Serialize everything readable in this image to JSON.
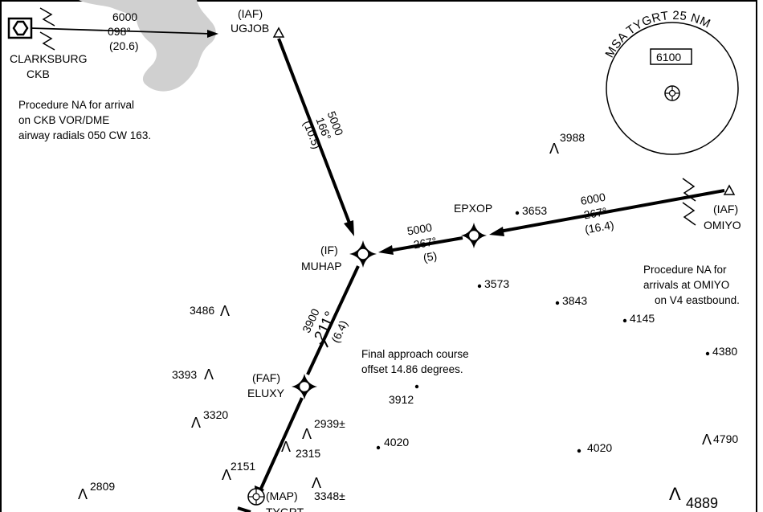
{
  "navaid": {
    "name": "CLARKSBURG",
    "ident": "CKB"
  },
  "feeder": {
    "altitude": "6000",
    "course": "098°",
    "distance": "(20.6)"
  },
  "notes": {
    "ckb": [
      "Procedure NA for arrival",
      "on CKB VOR/DME",
      "airway radials 050 CW 163."
    ],
    "omiyo": [
      "Procedure NA for",
      "arrivals at OMIYO",
      "on V4 eastbound."
    ],
    "final": [
      "Final approach course",
      "offset 14.86 degrees."
    ]
  },
  "fixes": {
    "ugjob": {
      "role": "(IAF)",
      "name": "UGJOB"
    },
    "omiyo": {
      "role": "(IAF)",
      "name": "OMIYO"
    },
    "muhap": {
      "role": "(IF)",
      "name": "MUHAP"
    },
    "epxop": {
      "name": "EPXOP"
    },
    "eluxy": {
      "role": "(FAF)",
      "name": "ELUXY"
    },
    "tygrt": {
      "role": "(MAP)",
      "name": "TYGRT"
    }
  },
  "legs": {
    "ugjob_muhap": {
      "altitude": "5000",
      "course": "166°",
      "distance": "(10.5)"
    },
    "omiyo_epxop": {
      "altitude": "6000",
      "course": "267°",
      "distance": "(16.4)"
    },
    "epxop_muhap": {
      "altitude": "5000",
      "course": "267°",
      "distance": "(5)"
    },
    "muhap_tygrt": {
      "altitude": "3900",
      "course": "211°",
      "distance": "(6.4)"
    }
  },
  "msa": {
    "title": "MSA TYGRT 25 NM",
    "altitude": "6100"
  },
  "obstacles": {
    "o3988": "3988",
    "o3486": "3486",
    "o3393": "3393",
    "o3320": "3320",
    "o2939": "2939±",
    "o2315": "2315",
    "o2151": "2151",
    "o2809": "2809",
    "o3348": "3348±",
    "o4790": "4790",
    "o4889": "4889"
  },
  "spot_elevations": {
    "s3653": "3653",
    "s3573": "3573",
    "s3843": "3843",
    "s4145": "4145",
    "s4380": "4380",
    "s3912": "3912",
    "s4020a": "4020",
    "s4020b": "4020"
  },
  "colors": {
    "terrain": "#d0d0d0",
    "ink": "#000000",
    "background": "#ffffff"
  }
}
